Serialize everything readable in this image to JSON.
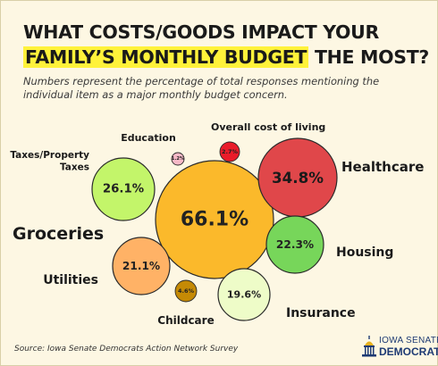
{
  "header": {
    "title_line1": "WHAT COSTS/GOODS IMPACT YOUR",
    "title_highlight": "FAMILY’S MONTHLY BUDGET",
    "title_end": " THE MOST?",
    "subtitle": "Numbers represent the percentage of total responses mentioning the individual item as a major monthly budget concern."
  },
  "chart_data": {
    "type": "bubble",
    "unit": "%",
    "items": [
      {
        "label": "Groceries",
        "value": 66.1,
        "color": "#fbb92b"
      },
      {
        "label": "Healthcare",
        "value": 34.8,
        "color": "#e0474a"
      },
      {
        "label": "Taxes/Property Taxes",
        "value": 26.1,
        "color": "#c3f56a"
      },
      {
        "label": "Housing",
        "value": 22.3,
        "color": "#77d65a"
      },
      {
        "label": "Utilities",
        "value": 21.1,
        "color": "#ffb266"
      },
      {
        "label": "Insurance",
        "value": 19.6,
        "color": "#eefcc8"
      },
      {
        "label": "Childcare",
        "value": 4.6,
        "color": "#c58a05"
      },
      {
        "label": "Overall cost of living",
        "value": 2.7,
        "color": "#ea1c2a"
      },
      {
        "label": "Education",
        "value": 1.2,
        "color": "#f7b9c7"
      }
    ]
  },
  "footer": {
    "source": "Source: Iowa Senate Democrats Action Network Survey",
    "logo_line1": "IOWA SENATE",
    "logo_line2": "DEMOCRATS"
  }
}
